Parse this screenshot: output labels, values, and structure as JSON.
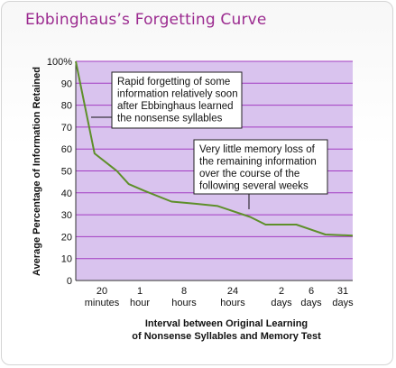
{
  "title": "Ebbinghaus’s Forgetting Curve",
  "colors": {
    "title": "#9b2a8f",
    "plot_bg": "#d9c3ee",
    "grid": "#a33cc2",
    "curve": "#5e8f2a"
  },
  "chart_data": {
    "type": "line",
    "ylabel": "Average Percentage of Information Retained",
    "xlabel": [
      "Interval between Original Learning",
      "of Nonsense Syllables and Memory Test"
    ],
    "ylim": [
      0,
      100
    ],
    "yticks": [
      0,
      10,
      20,
      30,
      40,
      50,
      60,
      70,
      80,
      90,
      100
    ],
    "ytick_labels": [
      "0",
      "10",
      "20",
      "30",
      "40",
      "50",
      "60",
      "70",
      "80",
      "90",
      "100%"
    ],
    "xticks": [
      {
        "line1": "20",
        "line2": "minutes"
      },
      {
        "line1": "1",
        "line2": "hour"
      },
      {
        "line1": "8",
        "line2": "hours"
      },
      {
        "line1": "24",
        "line2": "hours"
      },
      {
        "line1": "2",
        "line2": "days"
      },
      {
        "line1": "6",
        "line2": "days"
      },
      {
        "line1": "31",
        "line2": "days"
      }
    ],
    "grid": true,
    "x_scale": "relative interval position (0 = start, 7 = 31 days)",
    "series": [
      {
        "points": [
          {
            "x": 0.0,
            "y": 100
          },
          {
            "x": 0.55,
            "y": 58
          },
          {
            "x": 1.2,
            "y": 50
          },
          {
            "x": 1.55,
            "y": 44
          },
          {
            "x": 2.0,
            "y": 41
          },
          {
            "x": 2.8,
            "y": 36
          },
          {
            "x": 3.5,
            "y": 35
          },
          {
            "x": 4.15,
            "y": 34
          },
          {
            "x": 5.1,
            "y": 29
          },
          {
            "x": 5.55,
            "y": 25.5
          },
          {
            "x": 6.45,
            "y": 25.5
          },
          {
            "x": 7.3,
            "y": 21
          },
          {
            "x": 8.1,
            "y": 20.5
          }
        ]
      }
    ],
    "annotations": [
      {
        "lines": [
          "Rapid forgetting of some",
          "information relatively soon",
          "after Ebbinghaus learned",
          "the nonsense syllables"
        ]
      },
      {
        "lines": [
          "Very little memory loss of",
          "the remaining information",
          "over the course of the",
          "following several weeks"
        ]
      }
    ]
  }
}
